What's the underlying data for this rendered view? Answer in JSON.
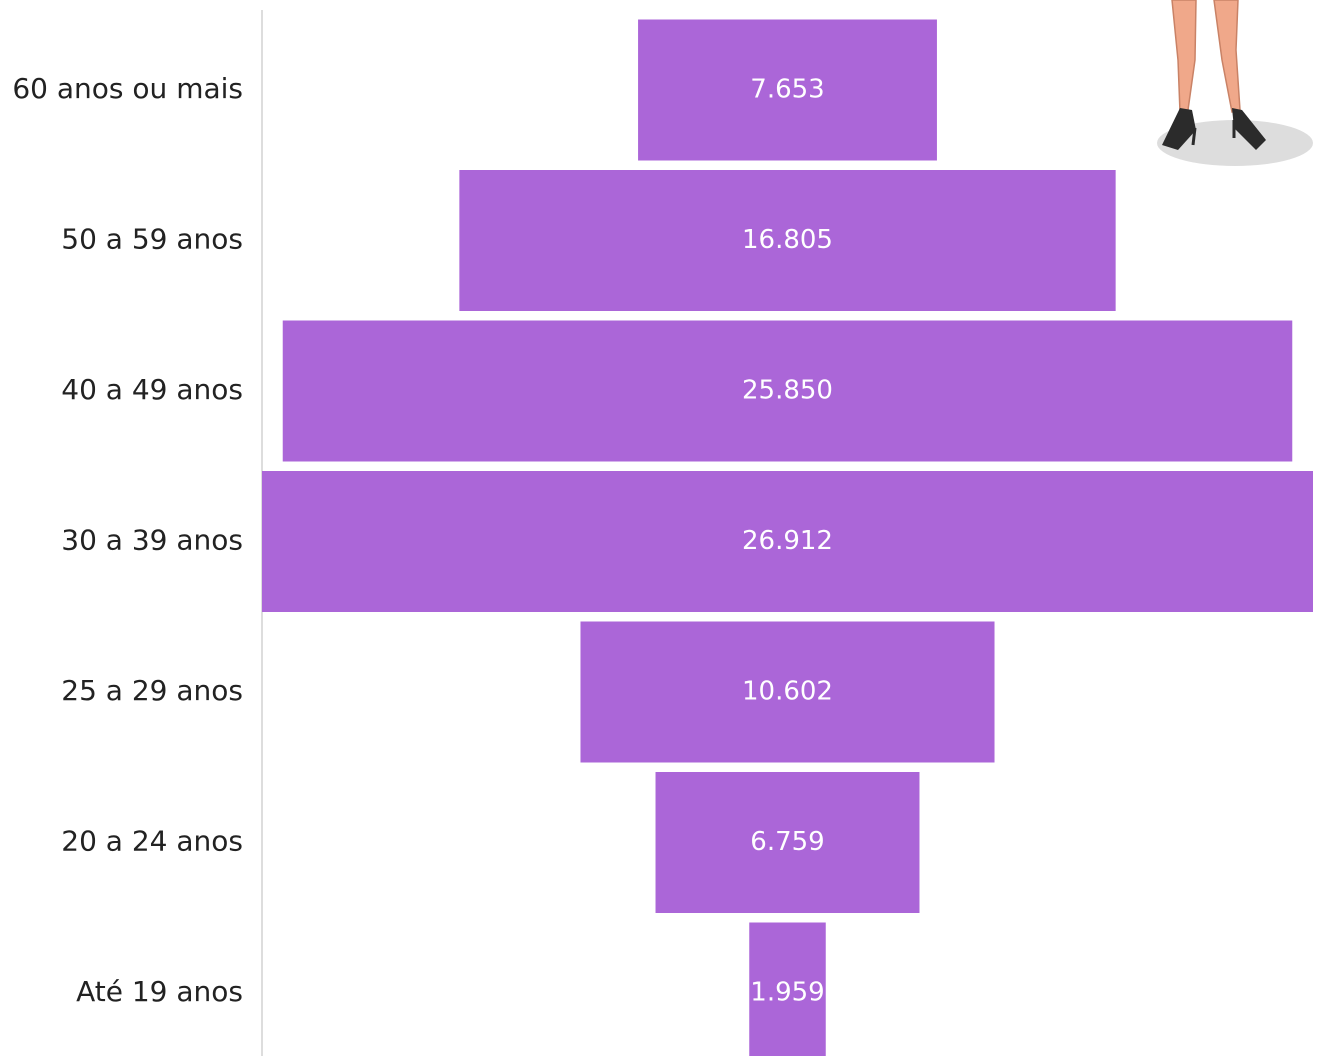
{
  "chart_data": {
    "type": "funnel",
    "categories": [
      "60 anos ou mais",
      "50 a 59 anos",
      "40 a 49 anos",
      "30 a 39 anos",
      "25 a 29 anos",
      "20 a 24 anos",
      "Até 19 anos"
    ],
    "values": [
      7653,
      16805,
      25850,
      26912,
      10602,
      6759,
      1959
    ],
    "value_labels": [
      "7.653",
      "16.805",
      "25.850",
      "26.912",
      "10.602",
      "6.759",
      "1.959"
    ],
    "color": "#ab66d8"
  }
}
